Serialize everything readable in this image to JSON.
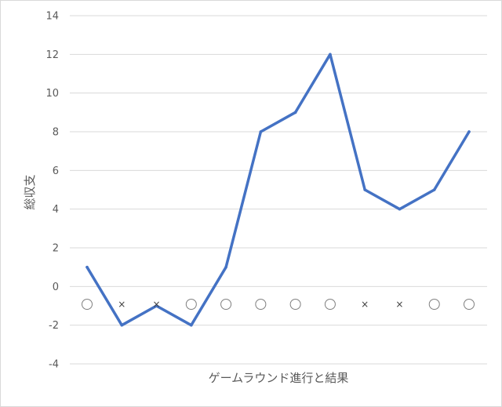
{
  "chart_data": {
    "type": "line",
    "xlabel": "ゲームラウンド進行と結果",
    "ylabel": "総収支",
    "ylim": [
      -4,
      14
    ],
    "y_ticks": [
      "-4",
      "-2",
      "0",
      "2",
      "4",
      "6",
      "8",
      "10",
      "12",
      "14"
    ],
    "grid": true,
    "x": [
      1,
      2,
      3,
      4,
      5,
      6,
      7,
      8,
      9,
      10,
      11,
      12
    ],
    "results": [
      "○",
      "×",
      "×",
      "○",
      "○",
      "○",
      "○",
      "○",
      "×",
      "×",
      "○",
      "○"
    ],
    "series": [
      {
        "values": [
          1,
          -2,
          -1,
          -2,
          1,
          8,
          9,
          12,
          5,
          4,
          5,
          8
        ],
        "color": "#4472c4"
      }
    ]
  }
}
